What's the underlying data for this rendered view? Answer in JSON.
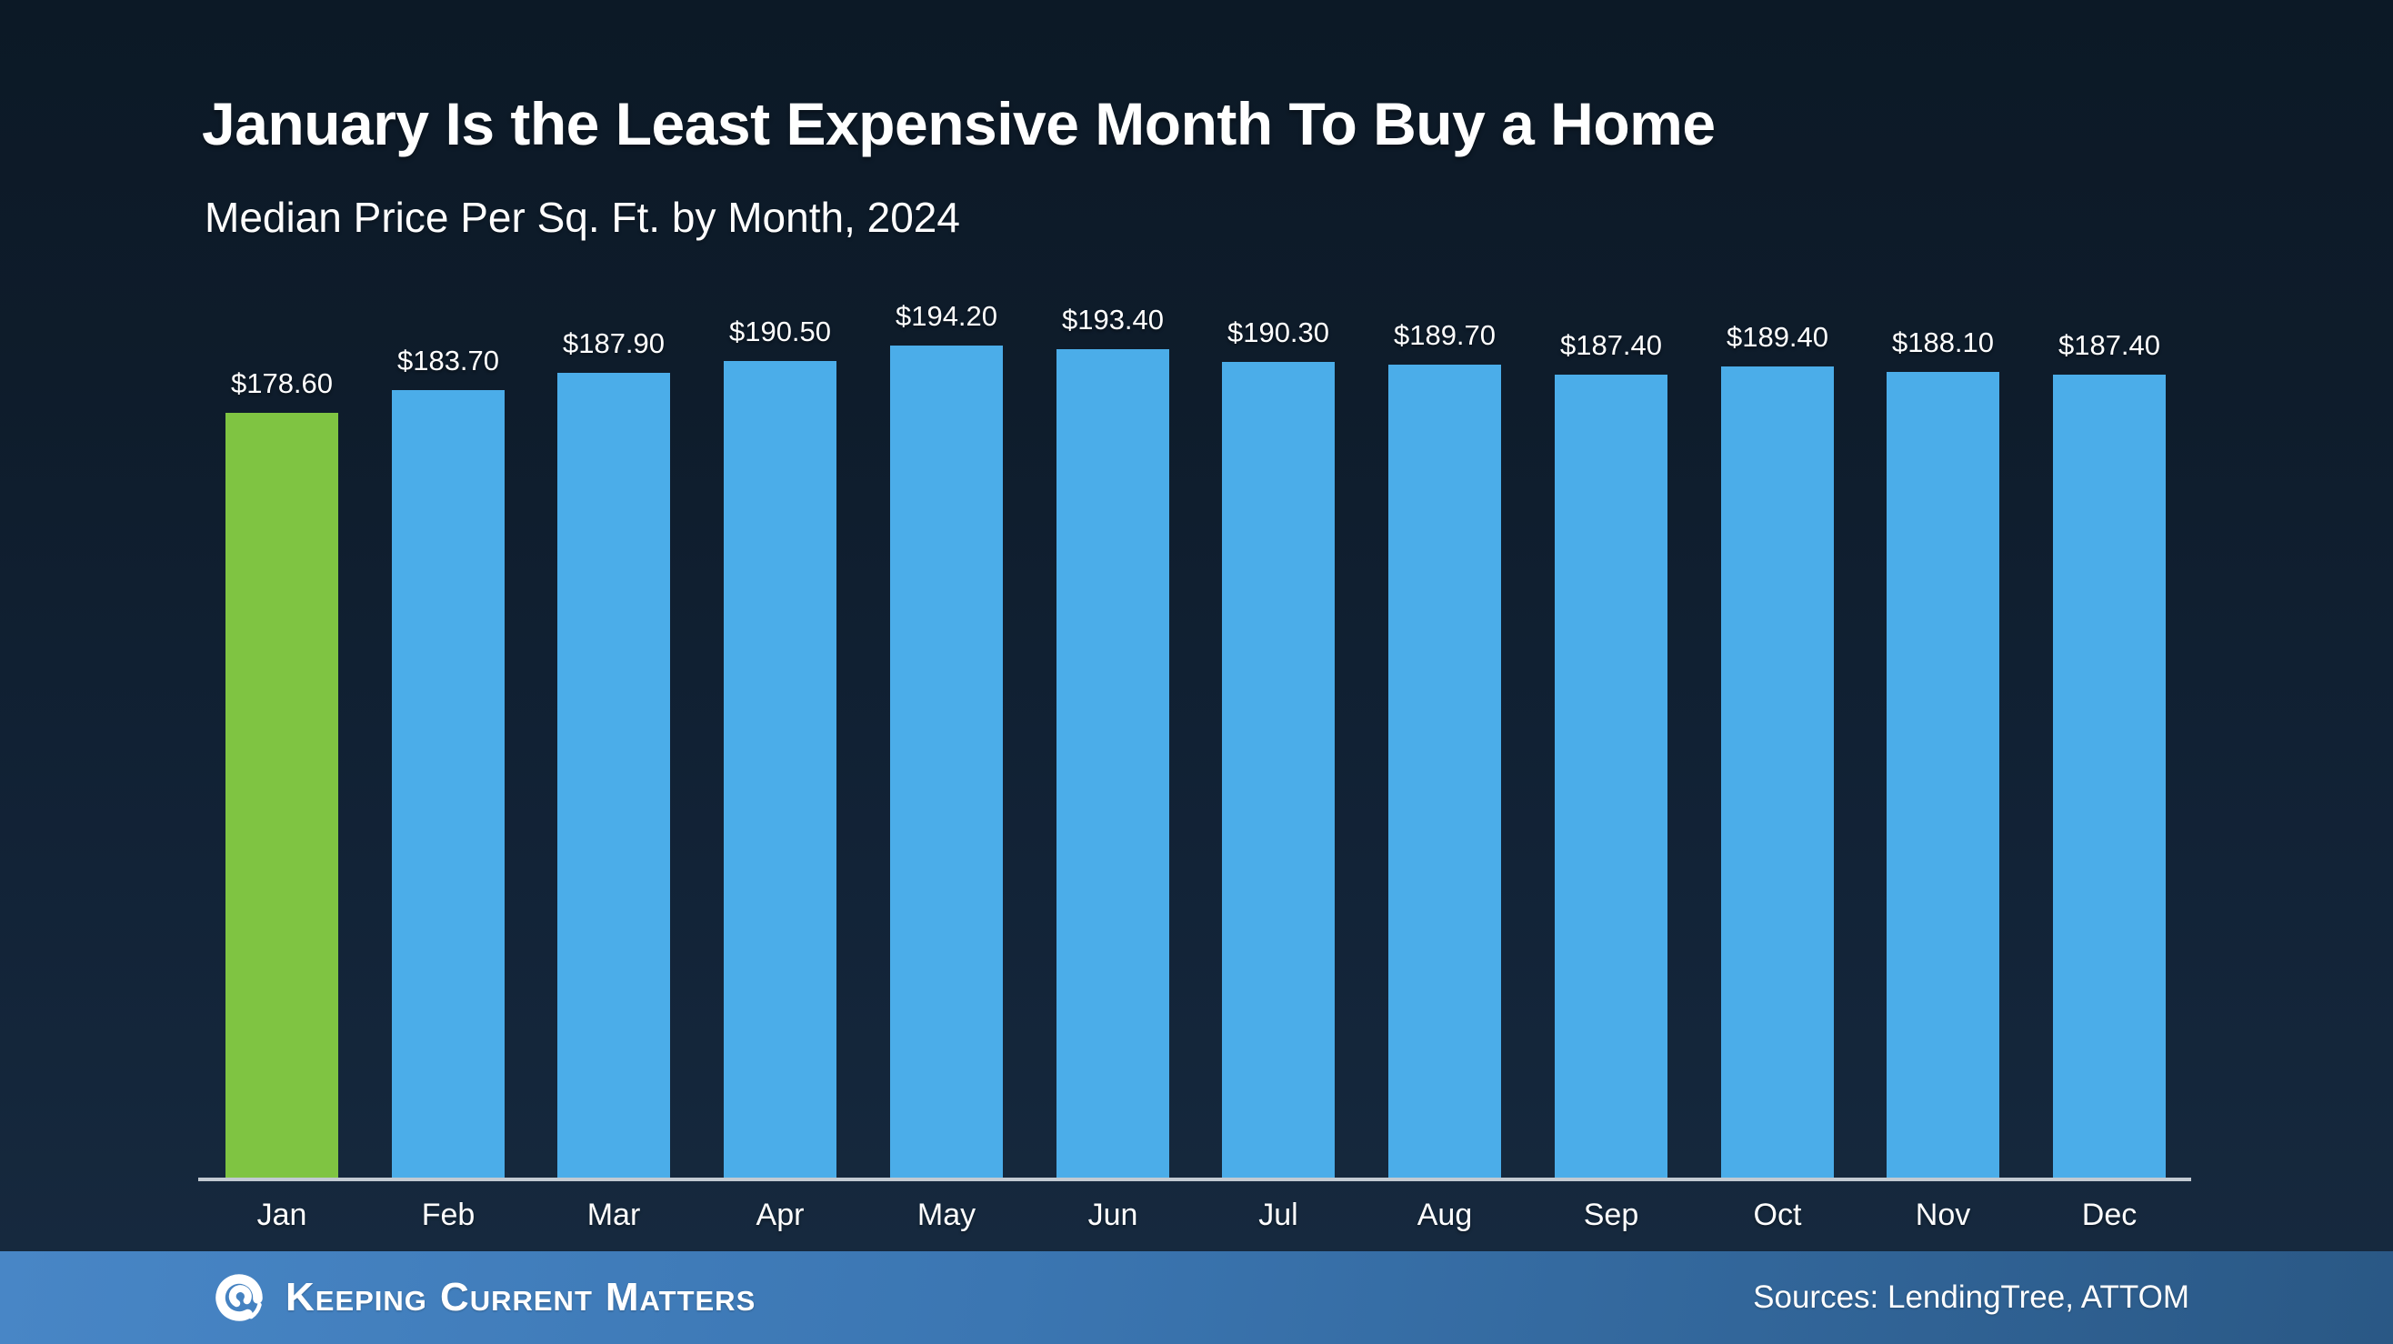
{
  "header": {
    "title": "January Is the Least Expensive Month To Buy a Home",
    "subtitle": "Median Price Per Sq. Ft. by Month, 2024"
  },
  "chart_data": {
    "type": "bar",
    "title": "January Is the Least Expensive Month To Buy a Home",
    "subtitle": "Median Price Per Sq. Ft. by Month, 2024",
    "categories": [
      "Jan",
      "Feb",
      "Mar",
      "Apr",
      "May",
      "Jun",
      "Jul",
      "Aug",
      "Sep",
      "Oct",
      "Nov",
      "Dec"
    ],
    "values": [
      178.6,
      183.7,
      187.9,
      190.5,
      194.2,
      193.4,
      190.3,
      189.7,
      187.4,
      189.4,
      188.1,
      187.4
    ],
    "value_labels": [
      "$178.60",
      "$183.70",
      "$187.90",
      "$190.50",
      "$194.20",
      "$193.40",
      "$190.30",
      "$189.70",
      "$187.40",
      "$189.40",
      "$188.10",
      "$187.40"
    ],
    "xlabel": "",
    "ylabel": "",
    "ylim": [
      0,
      200
    ],
    "grid": false,
    "legend": false,
    "highlight_index": 0,
    "colors": {
      "bar": "#4bade9",
      "highlight_bar": "#7fc442",
      "axis_line": "#c2cad2",
      "label_text": "#ffffff",
      "background_top": "#0c1926",
      "background_bottom": "#16293e"
    }
  },
  "footer": {
    "brand": "Keeping Current Matters",
    "logo_icon": "kcm-swirl-icon",
    "sources": "Sources: LendingTree, ATTOM",
    "colors": {
      "bar_left": "#4886c6",
      "bar_right": "#2a5885",
      "text": "#ffffff"
    }
  }
}
